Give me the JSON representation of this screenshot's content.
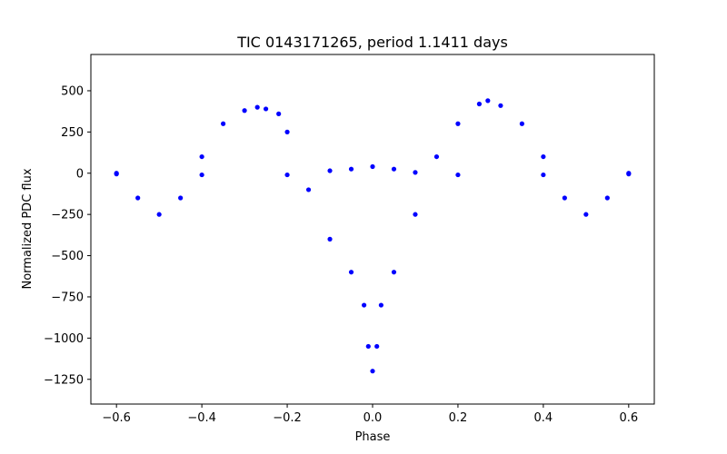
{
  "chart_data": {
    "type": "scatter",
    "title": "TIC 0143171265, period 1.1411 days",
    "xlabel": "Phase",
    "ylabel": "Normalized PDC flux",
    "xlim": [
      -0.66,
      0.66
    ],
    "ylim": [
      -1400,
      720
    ],
    "xticks": [
      -0.6,
      -0.4,
      -0.2,
      0.0,
      0.2,
      0.4,
      0.6
    ],
    "xtick_labels": [
      "−0.6",
      "−0.4",
      "−0.2",
      "0.0",
      "0.2",
      "0.4",
      "0.6"
    ],
    "yticks": [
      500,
      250,
      0,
      -250,
      -500,
      -750,
      -1000,
      -1250
    ],
    "ytick_labels": [
      "500",
      "250",
      "0",
      "−250",
      "−500",
      "−750",
      "−1000",
      "−1250"
    ],
    "grid": false,
    "marker_color": "#0000ff",
    "series": [
      {
        "name": "",
        "x": [
          -0.6,
          -0.55,
          -0.5,
          -0.45,
          -0.4,
          -0.35,
          -0.3,
          -0.27,
          -0.25,
          -0.22,
          -0.2,
          -0.15,
          -0.1,
          -0.05,
          -0.02,
          -0.01,
          0.0,
          0.01,
          0.02,
          0.05,
          0.1,
          0.15,
          0.2,
          0.25,
          0.27,
          0.3,
          0.35,
          0.4,
          0.45,
          0.5,
          0.55,
          0.6
        ],
        "y": [
          0,
          -150,
          -250,
          -150,
          100,
          300,
          380,
          400,
          390,
          360,
          250,
          -100,
          -400,
          -600,
          -800,
          -1050,
          -1200,
          -1050,
          -800,
          -600,
          -250,
          100,
          300,
          420,
          440,
          410,
          300,
          100,
          -150,
          -250,
          -150,
          0
        ]
      },
      {
        "name": "",
        "x": [
          -0.6,
          -0.4,
          -0.2,
          -0.1,
          -0.05,
          0.0,
          0.05,
          0.1,
          0.2,
          0.4,
          0.6
        ],
        "y": [
          -5,
          -10,
          -10,
          15,
          25,
          40,
          25,
          5,
          -10,
          -10,
          -5
        ]
      }
    ]
  }
}
